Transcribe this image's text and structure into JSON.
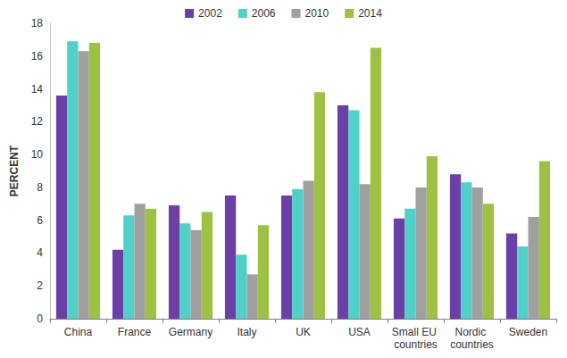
{
  "chart_data": {
    "type": "bar",
    "y_label": "PERCENT",
    "categories": [
      "China",
      "France",
      "Germany",
      "Italy",
      "UK",
      "USA",
      "Small EU countries",
      "Nordic countries",
      "Sweden"
    ],
    "series": [
      {
        "name": "2002",
        "color": "#6b3fa6",
        "values": [
          13.6,
          4.2,
          6.9,
          7.5,
          7.5,
          13.0,
          6.1,
          8.8,
          5.2
        ]
      },
      {
        "name": "2006",
        "color": "#4fd1c9",
        "values": [
          16.9,
          6.3,
          5.8,
          3.9,
          7.9,
          12.7,
          6.7,
          8.3,
          4.4
        ]
      },
      {
        "name": "2010",
        "color": "#a0a0a0",
        "values": [
          16.3,
          7.0,
          5.4,
          2.7,
          8.4,
          8.2,
          8.0,
          8.0,
          6.2
        ]
      },
      {
        "name": "2014",
        "color": "#9dc143",
        "values": [
          16.8,
          6.7,
          6.5,
          5.7,
          13.8,
          16.5,
          9.9,
          7.0,
          9.6
        ]
      }
    ],
    "ylim": [
      0,
      18
    ],
    "yticks": [
      0,
      2,
      4,
      6,
      8,
      10,
      12,
      14,
      16,
      18
    ],
    "grid": false,
    "legend": "top"
  }
}
